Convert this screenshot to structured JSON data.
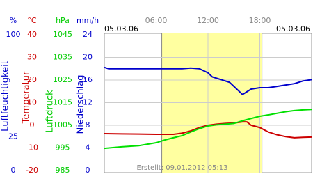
{
  "chart_data": {
    "type": "line",
    "date_left": "05.03.06",
    "date_right": "05.03.06",
    "footer": "Erstellt: 09.01.2012 05:13",
    "xlim": [
      0,
      24
    ],
    "xticks": [
      {
        "value": 6,
        "label": "06:00"
      },
      {
        "value": 12,
        "label": "12:00"
      },
      {
        "value": 18,
        "label": "18:00"
      }
    ],
    "daylight": [
      6.65,
      18.25
    ],
    "grid": true,
    "axes": [
      {
        "key": "y",
        "unit": "%",
        "title": "Luftfeuchtigkeit",
        "color": "#0000cc",
        "lim": [
          0,
          100
        ],
        "ticks": [
          0,
          25,
          100
        ]
      },
      {
        "key": "y2",
        "unit": "°C",
        "title": "Temperatur",
        "color": "#cc0000",
        "lim": [
          -20,
          40
        ],
        "ticks": [
          -20,
          -10,
          0,
          10,
          20,
          30,
          40
        ]
      },
      {
        "key": "y3",
        "unit": "hPa",
        "title": "Luftdruck",
        "color": "#00cc00",
        "lim": [
          985,
          1045
        ],
        "ticks": [
          985,
          995,
          1005,
          1015,
          1025,
          1035,
          1045
        ]
      },
      {
        "key": "y4",
        "unit": "mm/h",
        "title": "Niederschlag",
        "color": "#0000cc",
        "lim": [
          0,
          24
        ],
        "ticks": [
          0,
          4,
          8,
          12,
          16,
          20,
          24
        ]
      }
    ],
    "series": [
      {
        "axis": "y",
        "color": "#0000cc",
        "x": [
          0,
          0.5,
          3,
          6,
          9,
          10,
          11,
          12,
          12.5,
          13.5,
          14.5,
          15,
          15.5,
          16,
          16.5,
          17,
          18,
          19,
          20,
          21,
          22,
          23,
          24
        ],
        "values": [
          76,
          75,
          75,
          75,
          75,
          75.5,
          75,
          72,
          69,
          67,
          65,
          62,
          59,
          56,
          58,
          60,
          61,
          61,
          62,
          63,
          64,
          66,
          67
        ]
      },
      {
        "axis": "y2",
        "color": "#cc0000",
        "x": [
          0,
          2,
          4,
          6,
          8,
          9,
          10,
          11,
          12,
          13,
          14,
          15,
          16,
          16.5,
          17,
          18,
          19,
          20,
          21,
          22,
          23,
          24
        ],
        "values": [
          -3.7,
          -3.8,
          -3.9,
          -4,
          -4,
          -3.5,
          -2.5,
          -1,
          0,
          0.5,
          0.8,
          1,
          1.5,
          1.5,
          0,
          -1,
          -3,
          -4.2,
          -5,
          -5.5,
          -5.3,
          -5.2
        ]
      },
      {
        "axis": "y3",
        "color": "#00e000",
        "x": [
          0,
          2,
          4,
          6,
          7,
          8,
          9,
          10,
          11,
          12,
          13,
          14,
          15,
          16,
          17,
          18,
          19,
          20,
          21,
          22,
          23,
          24
        ],
        "values": [
          994.8,
          995.5,
          996,
          997.3,
          998.5,
          999.5,
          1000.4,
          1002,
          1003.5,
          1004.7,
          1005.2,
          1005.5,
          1005.8,
          1007,
          1008,
          1009,
          1009.6,
          1010.3,
          1011,
          1011.5,
          1011.8,
          1012
        ]
      }
    ]
  }
}
